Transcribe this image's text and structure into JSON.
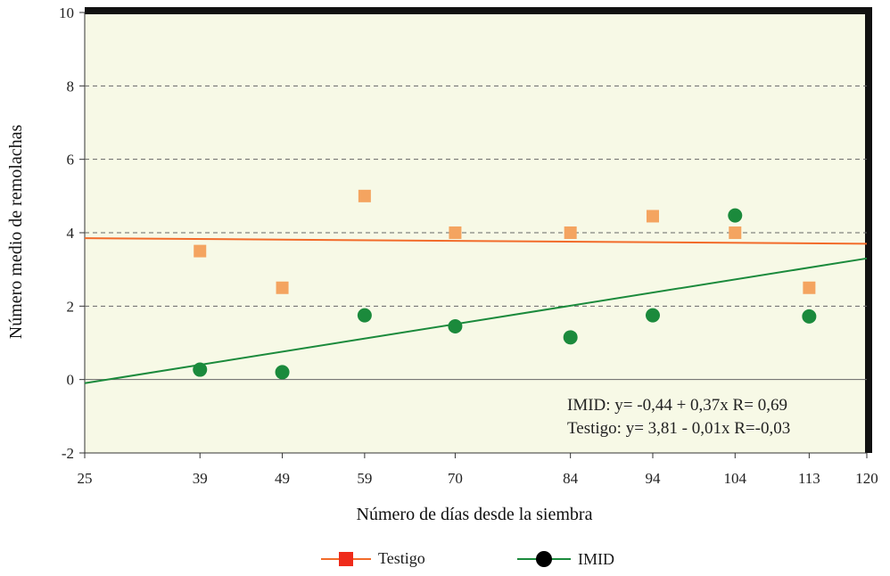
{
  "chart_data": {
    "type": "scatter",
    "xlabel": "Número de días desde la siembra",
    "ylabel": "Número medio de remolachas",
    "x_ticks": [
      25,
      39,
      49,
      59,
      70,
      84,
      94,
      104,
      113,
      120
    ],
    "y_ticks": [
      -2,
      0,
      2,
      4,
      6,
      8,
      10
    ],
    "xlim": [
      25,
      120
    ],
    "ylim": [
      -2,
      10
    ],
    "grid": "horizontal dashed",
    "legend_position": "bottom-center",
    "colors": {
      "Testigo": "#f4a460",
      "Testigo_line": "#f26b2a",
      "IMID": "#1b8a3c",
      "plot_bg": "#f7f9e6"
    },
    "series": [
      {
        "name": "Testigo",
        "marker": "square",
        "x": [
          39,
          49,
          59,
          70,
          84,
          94,
          104,
          113
        ],
        "y": [
          3.5,
          2.5,
          5.0,
          4.0,
          4.0,
          4.45,
          4.0,
          2.5
        ]
      },
      {
        "name": "IMID",
        "marker": "circle",
        "x": [
          39,
          49,
          59,
          70,
          84,
          94,
          104,
          113
        ],
        "y": [
          0.27,
          0.2,
          1.75,
          1.45,
          1.15,
          1.75,
          4.47,
          1.72
        ]
      }
    ],
    "trend_lines": [
      {
        "series": "IMID",
        "y_start": -0.1,
        "y_end": 3.3
      },
      {
        "series": "Testigo",
        "y_start": 3.85,
        "y_end": 3.7
      }
    ],
    "annotations": [
      "IMID: y= -0,44 + 0,37x  R= 0,69",
      "Testigo: y= 3,81 - 0,01x  R=-0,03"
    ]
  },
  "legend": [
    {
      "label": "Testigo",
      "icon": "square-marker-icon"
    },
    {
      "label": "IMID",
      "icon": "circle-marker-icon"
    }
  ]
}
